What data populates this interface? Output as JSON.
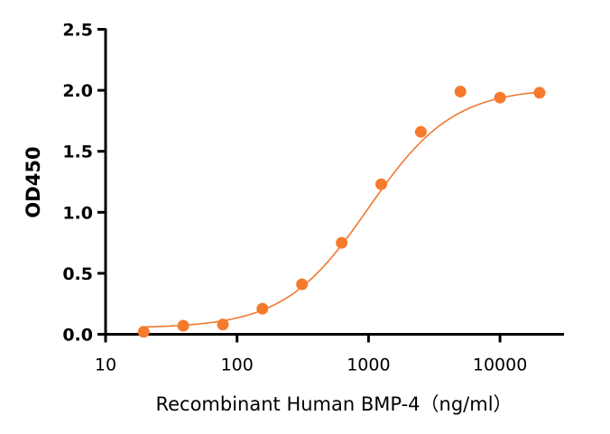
{
  "chart_data": {
    "type": "scatter",
    "title": "",
    "xlabel": "Recombinant Human BMP-4（ng/ml）",
    "ylabel": "OD450",
    "xscale": "log",
    "xlim": [
      10,
      30000
    ],
    "ylim": [
      0,
      2.5
    ],
    "xticks": [
      10,
      100,
      1000,
      10000
    ],
    "xtick_labels": [
      "10",
      "100",
      "1000",
      "10000"
    ],
    "yticks": [
      0,
      0.5,
      1.0,
      1.5,
      2.0,
      2.5
    ],
    "ytick_labels": [
      "0.0",
      "0.5",
      "1.0",
      "1.5",
      "2.0",
      "2.5"
    ],
    "grid": false,
    "series": [
      {
        "name": "BMP-4",
        "color": "#F57A2B",
        "x": [
          19.5,
          39,
          78,
          156,
          312,
          625,
          1250,
          2500,
          5000,
          10000,
          20000
        ],
        "y": [
          0.02,
          0.07,
          0.08,
          0.21,
          0.41,
          0.75,
          1.23,
          1.66,
          1.99,
          1.94,
          1.98
        ]
      }
    ],
    "fit": {
      "type": "4PL",
      "bottom": 0.05,
      "top": 2.02,
      "ec50": 1000,
      "hill": 1.35,
      "color": "#F07830"
    }
  }
}
